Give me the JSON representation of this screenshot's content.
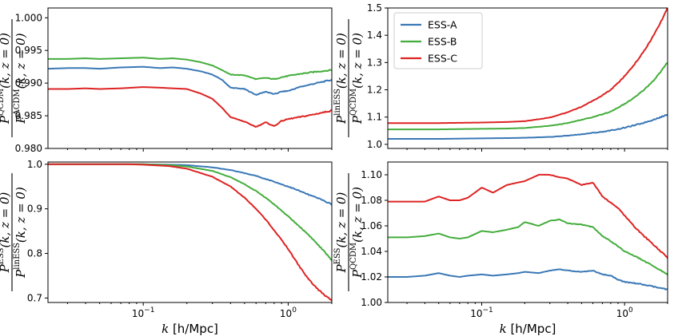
{
  "colors": {
    "ESS-A": "#3a78b6",
    "ESS-B": "#44ad3c",
    "ESS-C": "#dd2323"
  },
  "shared_xlabel": {
    "k": "k",
    "unit": "[h/Mpc]"
  },
  "chart_data": [
    {
      "id": "top-left",
      "type": "line",
      "ylabel": {
        "num_sym": "P",
        "num_sup": "QCDM",
        "den_sym": "P",
        "den_sup": "ΛCDM",
        "args": "(k, z = 0)"
      },
      "xscale": "log",
      "xlim": [
        0.022,
        2.0
      ],
      "ylim": [
        0.98,
        1.0015
      ],
      "yticks": [
        0.98,
        0.985,
        0.99,
        0.995,
        1.0
      ],
      "ytick_labels": [
        "0.980",
        "0.985",
        "0.990",
        "0.995",
        "1.000"
      ],
      "xticks_shown": false,
      "x": [
        0.022,
        0.03,
        0.04,
        0.05,
        0.07,
        0.1,
        0.13,
        0.16,
        0.2,
        0.25,
        0.3,
        0.35,
        0.4,
        0.5,
        0.6,
        0.7,
        0.8,
        0.9,
        1.0,
        1.2,
        1.5,
        2.0
      ],
      "series": [
        {
          "name": "ESS-A",
          "values": [
            0.9922,
            0.9923,
            0.9923,
            0.9922,
            0.9924,
            0.9925,
            0.9923,
            0.9924,
            0.9922,
            0.9918,
            0.9913,
            0.9905,
            0.9893,
            0.9891,
            0.9882,
            0.9887,
            0.9883,
            0.9887,
            0.9888,
            0.9894,
            0.9899,
            0.9905
          ]
        },
        {
          "name": "ESS-B",
          "values": [
            0.9937,
            0.9937,
            0.9938,
            0.9937,
            0.9938,
            0.9939,
            0.9937,
            0.9938,
            0.9936,
            0.9932,
            0.9927,
            0.992,
            0.9913,
            0.9912,
            0.9906,
            0.9908,
            0.9906,
            0.9909,
            0.9911,
            0.9914,
            0.9917,
            0.992
          ]
        },
        {
          "name": "ESS-C",
          "values": [
            0.9891,
            0.9891,
            0.9892,
            0.9891,
            0.9892,
            0.9894,
            0.9893,
            0.9892,
            0.9891,
            0.9884,
            0.9876,
            0.9862,
            0.9848,
            0.9841,
            0.9833,
            0.984,
            0.9834,
            0.9842,
            0.9845,
            0.9848,
            0.9852,
            0.9858
          ]
        }
      ]
    },
    {
      "id": "top-right",
      "type": "line",
      "ylabel": {
        "num_sym": "P",
        "num_sup": "linESS",
        "den_sym": "P",
        "den_sup": "QCDM",
        "args": "(k, z = 0)"
      },
      "xscale": "log",
      "xlim": [
        0.022,
        2.0
      ],
      "ylim": [
        0.985,
        1.5
      ],
      "yticks": [
        1.0,
        1.1,
        1.2,
        1.3,
        1.4,
        1.5
      ],
      "ytick_labels": [
        "1.0",
        "1.1",
        "1.2",
        "1.3",
        "1.4",
        "1.5"
      ],
      "xticks_shown": false,
      "legend": {
        "placement": "top-left",
        "entries": [
          "ESS-A",
          "ESS-B",
          "ESS-C"
        ]
      },
      "x": [
        0.022,
        0.03,
        0.05,
        0.07,
        0.1,
        0.15,
        0.2,
        0.3,
        0.4,
        0.5,
        0.6,
        0.7,
        0.8,
        0.9,
        1.0,
        1.2,
        1.4,
        1.6,
        1.8,
        2.0
      ],
      "series": [
        {
          "name": "ESS-A",
          "values": [
            1.02,
            1.02,
            1.02,
            1.021,
            1.022,
            1.023,
            1.024,
            1.027,
            1.032,
            1.037,
            1.042,
            1.046,
            1.051,
            1.056,
            1.061,
            1.071,
            1.081,
            1.091,
            1.1,
            1.11
          ]
        },
        {
          "name": "ESS-B",
          "values": [
            1.055,
            1.055,
            1.055,
            1.056,
            1.057,
            1.058,
            1.06,
            1.068,
            1.078,
            1.09,
            1.1,
            1.11,
            1.12,
            1.135,
            1.148,
            1.175,
            1.205,
            1.235,
            1.268,
            1.3
          ]
        },
        {
          "name": "ESS-C",
          "values": [
            1.078,
            1.078,
            1.078,
            1.079,
            1.08,
            1.082,
            1.085,
            1.098,
            1.118,
            1.138,
            1.16,
            1.18,
            1.2,
            1.225,
            1.25,
            1.3,
            1.35,
            1.4,
            1.45,
            1.5
          ]
        }
      ]
    },
    {
      "id": "bottom-left",
      "type": "line",
      "ylabel": {
        "num_sym": "P",
        "num_sup": "ESS",
        "den_sym": "P",
        "den_sup": "linESS",
        "args": "(k, z = 0)"
      },
      "xscale": "log",
      "xlim": [
        0.022,
        2.0
      ],
      "ylim": [
        0.69,
        1.005
      ],
      "yticks": [
        0.7,
        0.8,
        0.9,
        1.0
      ],
      "ytick_labels": [
        "0.7",
        "0.8",
        "0.9",
        "1.0"
      ],
      "xticks_shown": true,
      "xticks": [
        0.1,
        1.0
      ],
      "x": [
        0.022,
        0.05,
        0.08,
        0.1,
        0.15,
        0.2,
        0.3,
        0.4,
        0.5,
        0.6,
        0.7,
        0.8,
        0.9,
        1.0,
        1.2,
        1.4,
        1.6,
        1.8,
        2.0
      ],
      "series": [
        {
          "name": "ESS-A",
          "values": [
            1.0,
            1.0,
            1.0,
            1.0,
            0.999,
            0.998,
            0.993,
            0.987,
            0.98,
            0.974,
            0.967,
            0.961,
            0.955,
            0.95,
            0.94,
            0.931,
            0.924,
            0.917,
            0.91
          ]
        },
        {
          "name": "ESS-B",
          "values": [
            1.0,
            1.0,
            1.0,
            1.0,
            0.998,
            0.995,
            0.985,
            0.971,
            0.955,
            0.94,
            0.925,
            0.91,
            0.896,
            0.883,
            0.86,
            0.84,
            0.82,
            0.802,
            0.785
          ]
        },
        {
          "name": "ESS-C",
          "values": [
            1.0,
            1.0,
            1.0,
            0.999,
            0.996,
            0.99,
            0.972,
            0.95,
            0.925,
            0.9,
            0.876,
            0.852,
            0.83,
            0.81,
            0.77,
            0.74,
            0.72,
            0.705,
            0.695
          ]
        }
      ]
    },
    {
      "id": "bottom-right",
      "type": "line",
      "ylabel": {
        "num_sym": "P",
        "num_sup": "ESS",
        "den_sym": "P",
        "den_sup": "QCDM",
        "args": "(k, z = 0)"
      },
      "xscale": "log",
      "xlim": [
        0.022,
        2.0
      ],
      "ylim": [
        1.0,
        1.11
      ],
      "yticks": [
        1.0,
        1.02,
        1.04,
        1.06,
        1.08,
        1.1
      ],
      "ytick_labels": [
        "1.00",
        "1.02",
        "1.04",
        "1.06",
        "1.08",
        "1.10"
      ],
      "xticks_shown": true,
      "xticks": [
        0.1,
        1.0
      ],
      "x": [
        0.022,
        0.03,
        0.04,
        0.05,
        0.06,
        0.07,
        0.08,
        0.1,
        0.12,
        0.15,
        0.18,
        0.2,
        0.25,
        0.3,
        0.35,
        0.4,
        0.5,
        0.6,
        0.7,
        0.8,
        0.9,
        1.0,
        1.2,
        1.5,
        2.0
      ],
      "series": [
        {
          "name": "ESS-A",
          "values": [
            1.02,
            1.02,
            1.021,
            1.023,
            1.021,
            1.02,
            1.021,
            1.022,
            1.021,
            1.022,
            1.023,
            1.024,
            1.023,
            1.025,
            1.026,
            1.025,
            1.024,
            1.025,
            1.022,
            1.021,
            1.018,
            1.016,
            1.015,
            1.013,
            1.01
          ]
        },
        {
          "name": "ESS-B",
          "values": [
            1.051,
            1.051,
            1.052,
            1.054,
            1.051,
            1.05,
            1.051,
            1.056,
            1.055,
            1.057,
            1.059,
            1.063,
            1.06,
            1.064,
            1.065,
            1.062,
            1.061,
            1.059,
            1.052,
            1.048,
            1.044,
            1.04,
            1.036,
            1.03,
            1.022
          ]
        },
        {
          "name": "ESS-C",
          "values": [
            1.079,
            1.079,
            1.079,
            1.083,
            1.08,
            1.08,
            1.082,
            1.09,
            1.086,
            1.092,
            1.094,
            1.095,
            1.1,
            1.1,
            1.098,
            1.097,
            1.092,
            1.094,
            1.083,
            1.078,
            1.074,
            1.068,
            1.058,
            1.048,
            1.035
          ]
        }
      ]
    }
  ]
}
